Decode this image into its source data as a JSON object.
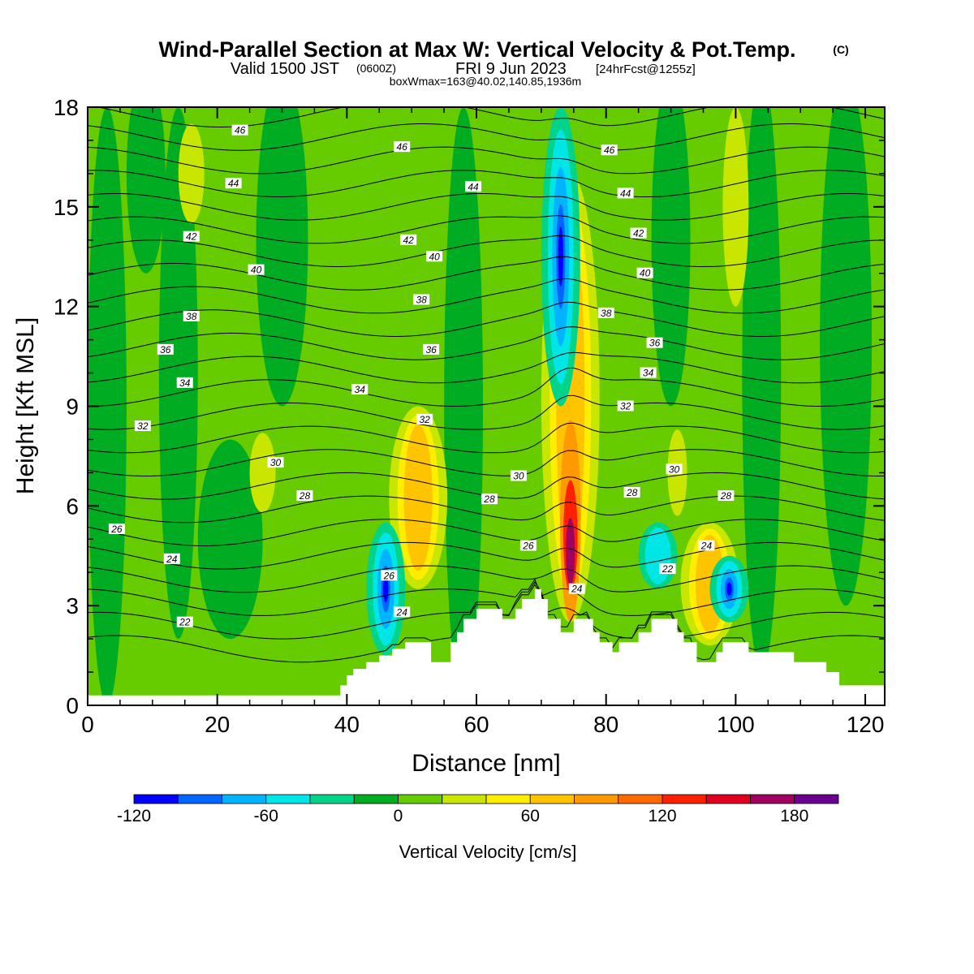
{
  "title": {
    "main": "Wind-Parallel Section at Max W: Vertical Velocity & Pot.Temp.",
    "copyright": "(C)",
    "valid_prefix": "Valid 1500 JST",
    "valid_z": "(0600Z)",
    "valid_date": "FRI 9 Jun 2023",
    "forecast": "[24hrFcst@1255z]",
    "box": "boxWmax=163@40.02,140.85,1936m"
  },
  "chart_data": {
    "type": "heatmap",
    "xlabel": "Distance [nm]",
    "ylabel": "Height [Kft MSL]",
    "xlim": [
      0,
      123
    ],
    "ylim": [
      0,
      18
    ],
    "x_ticks": [
      0,
      20,
      40,
      60,
      80,
      100,
      120
    ],
    "y_ticks": [
      0,
      3,
      6,
      9,
      12,
      15,
      18
    ],
    "shaded_field": "Vertical Velocity [cm/s]",
    "colorbar": {
      "title": "Vertical Velocity [cm/s]",
      "tick_values": [
        -120,
        -60,
        0,
        60,
        120,
        180
      ],
      "bin_edges": [
        -120,
        -100,
        -80,
        -60,
        -40,
        -20,
        0,
        20,
        40,
        60,
        80,
        100,
        120,
        140,
        160,
        180,
        200
      ],
      "colors": [
        "#0000ff",
        "#0066ff",
        "#00b4ff",
        "#00e6e6",
        "#00d48a",
        "#00ad22",
        "#66cc00",
        "#c8e600",
        "#ffee00",
        "#ffc400",
        "#ff9900",
        "#ff6a00",
        "#ff2000",
        "#e00020",
        "#a00060",
        "#6b0090"
      ]
    },
    "updraft_features": [
      {
        "x": 74.5,
        "y_range": [
          2.5,
          16
        ],
        "peak": 163
      },
      {
        "x": 51,
        "y_range": [
          3.5,
          9
        ],
        "peak": 60
      },
      {
        "x": 96,
        "y_range": [
          1.8,
          5.5
        ],
        "peak": 60
      }
    ],
    "downdraft_features": [
      {
        "x": 46,
        "y_range": [
          1.5,
          5.5
        ],
        "peak": -100
      },
      {
        "x": 73,
        "y_range": [
          9,
          18
        ],
        "peak": -100
      },
      {
        "x": 99,
        "y_range": [
          2.5,
          4.5
        ],
        "peak": -100
      },
      {
        "x": 88,
        "y_range": [
          3.5,
          5.5
        ],
        "peak": -50
      }
    ],
    "contour_field": "Potential Temperature",
    "contour_labels": [
      {
        "value": "46",
        "x": 23.5,
        "y": 17.3
      },
      {
        "value": "46",
        "x": 48.5,
        "y": 16.8
      },
      {
        "value": "46",
        "x": 80.5,
        "y": 16.7
      },
      {
        "value": "44",
        "x": 22.5,
        "y": 15.7
      },
      {
        "value": "44",
        "x": 59.5,
        "y": 15.6
      },
      {
        "value": "44",
        "x": 83,
        "y": 15.4
      },
      {
        "value": "42",
        "x": 16,
        "y": 14.1
      },
      {
        "value": "42",
        "x": 49.5,
        "y": 14.0
      },
      {
        "value": "42",
        "x": 85,
        "y": 14.2
      },
      {
        "value": "40",
        "x": 26,
        "y": 13.1
      },
      {
        "value": "40",
        "x": 53.5,
        "y": 13.5
      },
      {
        "value": "40",
        "x": 86,
        "y": 13.0
      },
      {
        "value": "38",
        "x": 16,
        "y": 11.7
      },
      {
        "value": "38",
        "x": 51.5,
        "y": 12.2
      },
      {
        "value": "38",
        "x": 80,
        "y": 11.8
      },
      {
        "value": "36",
        "x": 12,
        "y": 10.7
      },
      {
        "value": "36",
        "x": 53,
        "y": 10.7
      },
      {
        "value": "36",
        "x": 87.5,
        "y": 10.9
      },
      {
        "value": "34",
        "x": 15,
        "y": 9.7
      },
      {
        "value": "34",
        "x": 42,
        "y": 9.5
      },
      {
        "value": "34",
        "x": 86.5,
        "y": 10.0
      },
      {
        "value": "32",
        "x": 8.5,
        "y": 8.4
      },
      {
        "value": "32",
        "x": 52,
        "y": 8.6
      },
      {
        "value": "32",
        "x": 83,
        "y": 9.0
      },
      {
        "value": "30",
        "x": 29,
        "y": 7.3
      },
      {
        "value": "30",
        "x": 66.5,
        "y": 6.9
      },
      {
        "value": "30",
        "x": 90.5,
        "y": 7.1
      },
      {
        "value": "28",
        "x": 33.5,
        "y": 6.3
      },
      {
        "value": "28",
        "x": 62,
        "y": 6.2
      },
      {
        "value": "28",
        "x": 84,
        "y": 6.4
      },
      {
        "value": "28",
        "x": 98.5,
        "y": 6.3
      },
      {
        "value": "26",
        "x": 4.5,
        "y": 5.3
      },
      {
        "value": "26",
        "x": 46.5,
        "y": 3.9
      },
      {
        "value": "26",
        "x": 68,
        "y": 4.8
      },
      {
        "value": "24",
        "x": 13,
        "y": 4.4
      },
      {
        "value": "24",
        "x": 48.5,
        "y": 2.8
      },
      {
        "value": "24",
        "x": 75.5,
        "y": 3.5
      },
      {
        "value": "24",
        "x": 95.5,
        "y": 4.8
      },
      {
        "value": "22",
        "x": 15,
        "y": 2.5
      },
      {
        "value": "22",
        "x": 89.5,
        "y": 4.1
      }
    ],
    "terrain_profile": [
      [
        0,
        0.3
      ],
      [
        39,
        0.3
      ],
      [
        39,
        0.6
      ],
      [
        40,
        0.6
      ],
      [
        40,
        0.9
      ],
      [
        41,
        0.9
      ],
      [
        41,
        1.1
      ],
      [
        43,
        1.1
      ],
      [
        43,
        1.3
      ],
      [
        45,
        1.3
      ],
      [
        45,
        1.5
      ],
      [
        47,
        1.5
      ],
      [
        47,
        1.7
      ],
      [
        49,
        1.7
      ],
      [
        49,
        1.9
      ],
      [
        53,
        1.9
      ],
      [
        53,
        1.3
      ],
      [
        56,
        1.3
      ],
      [
        56,
        1.9
      ],
      [
        57,
        1.9
      ],
      [
        57,
        2.2
      ],
      [
        58,
        2.2
      ],
      [
        58,
        2.6
      ],
      [
        60,
        2.6
      ],
      [
        60,
        2.9
      ],
      [
        64,
        2.9
      ],
      [
        64,
        2.6
      ],
      [
        66,
        2.6
      ],
      [
        66,
        2.9
      ],
      [
        67,
        2.9
      ],
      [
        67,
        3.2
      ],
      [
        69,
        3.2
      ],
      [
        69,
        3.5
      ],
      [
        70,
        3.5
      ],
      [
        70,
        3.2
      ],
      [
        71,
        3.2
      ],
      [
        71,
        2.6
      ],
      [
        73,
        2.6
      ],
      [
        73,
        2.2
      ],
      [
        75,
        2.2
      ],
      [
        75,
        2.6
      ],
      [
        78,
        2.6
      ],
      [
        78,
        2.2
      ],
      [
        79,
        2.2
      ],
      [
        79,
        1.9
      ],
      [
        81,
        1.9
      ],
      [
        81,
        1.6
      ],
      [
        82,
        1.6
      ],
      [
        82,
        1.9
      ],
      [
        85,
        1.9
      ],
      [
        85,
        2.2
      ],
      [
        87,
        2.2
      ],
      [
        87,
        2.6
      ],
      [
        91,
        2.6
      ],
      [
        91,
        2.2
      ],
      [
        92,
        2.2
      ],
      [
        92,
        1.9
      ],
      [
        94,
        1.9
      ],
      [
        94,
        1.3
      ],
      [
        97,
        1.3
      ],
      [
        97,
        1.6
      ],
      [
        98,
        1.6
      ],
      [
        98,
        1.9
      ],
      [
        102,
        1.9
      ],
      [
        102,
        1.6
      ],
      [
        109,
        1.6
      ],
      [
        109,
        1.3
      ],
      [
        114,
        1.3
      ],
      [
        114,
        1.0
      ],
      [
        116,
        1.0
      ],
      [
        116,
        0.6
      ],
      [
        123,
        0.6
      ]
    ]
  }
}
